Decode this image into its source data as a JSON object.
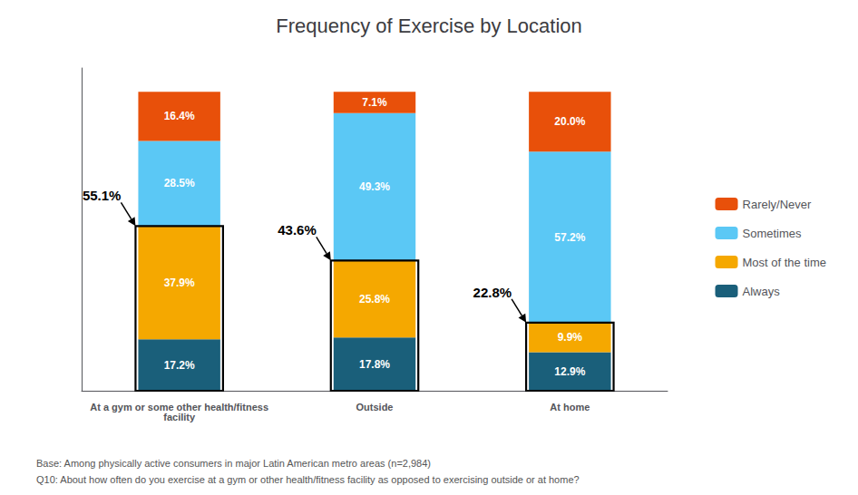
{
  "chart_data": {
    "type": "bar",
    "title": "Frequency of Exercise by Location",
    "categories": [
      "At a gym or some other health/fitness\nfacility",
      "Outside",
      "At home"
    ],
    "series": [
      {
        "name": "Always",
        "color": "#1a5f7a",
        "values": [
          17.2,
          17.8,
          12.9
        ],
        "value_labels": [
          "17.2%",
          "17.8%",
          "12.9%"
        ]
      },
      {
        "name": "Most of the time",
        "color": "#f5a800",
        "values": [
          37.9,
          25.8,
          9.9
        ],
        "value_labels": [
          "37.9%",
          "25.8%",
          "9.9%"
        ]
      },
      {
        "name": "Sometimes",
        "color": "#5bc8f5",
        "values": [
          28.5,
          49.3,
          57.2
        ],
        "value_labels": [
          "28.5%",
          "49.3%",
          "57.2%"
        ]
      },
      {
        "name": "Rarely/Never",
        "color": "#e8500a",
        "values": [
          16.4,
          7.1,
          20.0
        ],
        "value_labels": [
          "16.4%",
          "7.1%",
          "20.0%"
        ]
      }
    ],
    "stacked": true,
    "data_labels": true,
    "ylim": [
      0,
      108
    ],
    "yticks": [],
    "tick_labels": "x",
    "legend": "right",
    "annotations": [
      {
        "text": "55.1%",
        "category": "At a gym or some other health/fitness\nfacility",
        "value": 55.1
      },
      {
        "text": "43.6%",
        "category": "Outside",
        "value": 43.6
      },
      {
        "text": "22.8%",
        "category": "At home",
        "value": 22.8
      }
    ],
    "footnotes": [
      "Base: Among physically active consumers in major Latin American metro areas (n=2,984)",
      "Q10: About how often do you exercise at a gym or other health/fitness facility as opposed to exercising outside or at home?"
    ]
  }
}
